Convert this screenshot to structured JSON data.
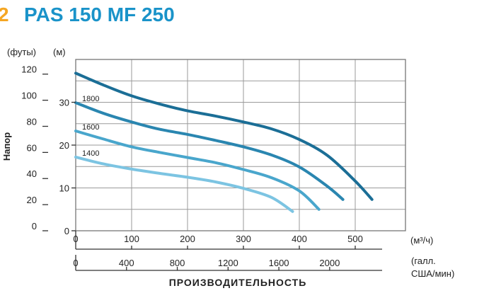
{
  "header": {
    "marker": "2",
    "title": "PAS 150 MF 250",
    "accent_color": "#f5a623",
    "title_color": "#1a93c9"
  },
  "chart_data": {
    "type": "line",
    "xlabel": "ПРОИЗВОДИТЕЛЬНОСТЬ",
    "ylabel": "Напор",
    "y_unit_left": "(футы)",
    "y_unit_right": "(м)",
    "x_unit_top": "(м³/ч)",
    "x_unit_bottom_line1": "(галл.",
    "x_unit_bottom_line2": "США/мин)",
    "x_ticks_m3h": [
      0,
      100,
      200,
      300,
      400,
      500
    ],
    "x_ticks_gpm": [
      0,
      400,
      800,
      1200,
      1600,
      2000
    ],
    "y_ticks_ft": [
      0,
      20,
      40,
      60,
      80,
      100,
      120
    ],
    "y_ticks_m": [
      0,
      10,
      20,
      30
    ],
    "xlim": [
      0,
      590
    ],
    "ylim": [
      0,
      40
    ],
    "grid": true,
    "series": [
      {
        "name": "",
        "color": "#1b6e96",
        "x": [
          0,
          50,
          100,
          150,
          200,
          250,
          300,
          350,
          400,
          450,
          500,
          530
        ],
        "y": [
          36.8,
          34.0,
          31.5,
          29.6,
          28.0,
          26.8,
          25.4,
          23.8,
          21.3,
          17.6,
          11.6,
          7.3
        ]
      },
      {
        "name": "1800",
        "color": "#2a86b0",
        "x": [
          0,
          50,
          100,
          150,
          200,
          250,
          300,
          350,
          400,
          450,
          478
        ],
        "y": [
          29.9,
          27.4,
          25.4,
          23.7,
          22.5,
          21.1,
          19.6,
          17.7,
          14.9,
          10.4,
          7.3
        ]
      },
      {
        "name": "1600",
        "color": "#49a6cc",
        "x": [
          0,
          50,
          100,
          150,
          200,
          250,
          300,
          350,
          400,
          435
        ],
        "y": [
          23.3,
          21.4,
          19.6,
          18.3,
          17.1,
          15.9,
          14.3,
          12.4,
          9.3,
          5.0
        ]
      },
      {
        "name": "1400",
        "color": "#7cc4e2",
        "x": [
          0,
          50,
          100,
          150,
          200,
          250,
          300,
          350,
          388
        ],
        "y": [
          17.2,
          15.6,
          14.4,
          13.4,
          12.5,
          11.4,
          9.9,
          7.8,
          4.5
        ]
      }
    ]
  }
}
